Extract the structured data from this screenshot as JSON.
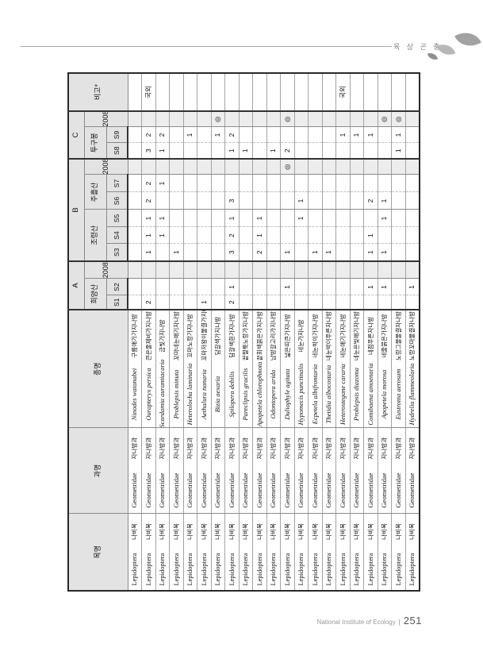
{
  "page": {
    "section_label": "육 상 곤 충",
    "footer_org": "National Institute of Ecology",
    "footer_sep": "|",
    "footer_page": "251"
  },
  "table": {
    "col_order": "목명",
    "col_family": "과명",
    "col_species": "종명",
    "col_remark": "비고*",
    "year_label": "2008",
    "groups": [
      {
        "label": "A",
        "sites": [
          {
            "name": "희양산",
            "cols": [
              "S1",
              "S2"
            ]
          }
        ]
      },
      {
        "label": "B",
        "sites": [
          {
            "name": "조령산",
            "cols": [
              "S3",
              "S4",
              "S5"
            ]
          },
          {
            "name": "주흘산",
            "cols": [
              "S6",
              "S7"
            ]
          }
        ]
      },
      {
        "label": "C",
        "sites": [
          {
            "name": "투구봉",
            "cols": [
              "S8",
              "S9"
            ]
          }
        ]
      }
    ],
    "mark_literature": "◎",
    "remark_foreign": "국외"
  },
  "rows": [
    {
      "order_la": "Lepidoptera",
      "order_ko": "나비목",
      "family_la": "Geometridae",
      "family_ko": "자나방과",
      "species_la": "Ninodes watanabei",
      "species_ko": "구름애기가지나방",
      "v": [
        "",
        "",
        "",
        "",
        "",
        "",
        "",
        "",
        "",
        "",
        "",
        ""
      ],
      "remark": ""
    },
    {
      "order_la": "Lepidoptera",
      "order_ko": "나비목",
      "family_la": "Geometridae",
      "family_ko": "자나방과",
      "species_la": "Ourapteryx persica",
      "species_ko": "큰은줄제비가지나방",
      "v": [
        "2",
        "",
        "",
        "1",
        "1",
        "1",
        "2",
        "2",
        "",
        "3",
        "2",
        ""
      ],
      "remark": "국외"
    },
    {
      "order_la": "Lepidoptera",
      "order_ko": "나비목",
      "family_la": "Geometridae",
      "family_ko": "자나방과",
      "species_la": "Scardamia aurantiacaria",
      "species_ko": "금빛가지나방",
      "v": [
        "",
        "",
        "",
        "",
        "1",
        "1",
        "",
        "1",
        "",
        "1",
        "2",
        ""
      ],
      "remark": ""
    },
    {
      "order_la": "Lepidoptera",
      "order_ko": "나비목",
      "family_la": "Geometridae",
      "family_ko": "자나방과",
      "species_la": "Problepsis minuta",
      "species_ko": "꼬마네눈애기자나방",
      "v": [
        "",
        "",
        "",
        "1",
        "",
        "",
        "",
        "",
        "",
        "",
        "",
        ""
      ],
      "remark": ""
    },
    {
      "order_la": "Lepidoptera",
      "order_ko": "나비목",
      "family_la": "Geometridae",
      "family_ko": "자나방과",
      "species_la": "Heterolocha laminaria",
      "species_ko": "꼬마노랑가지나방",
      "v": [
        "",
        "",
        "",
        "",
        "",
        "",
        "",
        "",
        "",
        "",
        "1",
        ""
      ],
      "remark": ""
    },
    {
      "order_la": "Lepidoptera",
      "order_ko": "나비목",
      "family_la": "Geometridae",
      "family_ko": "자나방과",
      "species_la": "Aethalura nanaria",
      "species_ko": "꼬마저왕이물결가지나방",
      "v": [
        "1",
        "",
        "",
        "",
        "",
        "",
        "",
        "",
        "",
        "",
        "",
        ""
      ],
      "remark": ""
    },
    {
      "order_la": "Lepidoptera",
      "order_ko": "나비목",
      "family_la": "Geometridae",
      "family_ko": "자나방과",
      "species_la": "Bizia aexaria",
      "species_ko": "담갈색가지나방",
      "v": [
        "",
        "",
        "",
        "",
        "",
        "",
        "",
        "",
        "",
        "",
        "1",
        "◎"
      ],
      "remark": ""
    },
    {
      "order_la": "Lepidoptera",
      "order_ko": "나비목",
      "family_la": "Geometridae",
      "family_ko": "자나방과",
      "species_la": "Spilopera debilis",
      "species_ko": "담갈색흰가지나방",
      "v": [
        "2",
        "1",
        "",
        "3",
        "2",
        "1",
        "3",
        "",
        "",
        "1",
        "2",
        ""
      ],
      "remark": ""
    },
    {
      "order_la": "Lepidoptera",
      "order_ko": "나비목",
      "family_la": "Geometridae",
      "family_ko": "자나방과",
      "species_la": "Pareclipsis gracilis",
      "species_ko": "끝짤룩노랑가지나방",
      "v": [
        "",
        "",
        "",
        "",
        "",
        "",
        "",
        "",
        "",
        "1",
        "",
        ""
      ],
      "remark": ""
    },
    {
      "order_la": "Lepidoptera",
      "order_ko": "나비목",
      "family_la": "Geometridae",
      "family_ko": "자나방과",
      "species_la": "Apopetela chlorophnota",
      "species_ko": "끝회색붉은가지나방",
      "v": [
        "",
        "",
        "",
        "2",
        "1",
        "1",
        "",
        "",
        "",
        "",
        "",
        ""
      ],
      "remark": ""
    },
    {
      "order_la": "Lepidoptera",
      "order_ko": "나비목",
      "family_la": "Geometridae",
      "family_ko": "자나방과",
      "species_la": "Odontopera arida",
      "species_ko": "남방갈고리가지나방",
      "v": [
        "",
        "",
        "",
        "",
        "",
        "",
        "",
        "",
        "",
        "1",
        "",
        ""
      ],
      "remark": ""
    },
    {
      "order_la": "Lepidoptera",
      "order_ko": "나비목",
      "family_la": "Geometridae",
      "family_ko": "자나방과",
      "species_la": "Duliophyle agitata",
      "species_ko": "넓은띠큰가지나방",
      "v": [
        "",
        "1",
        "",
        "1",
        "",
        "",
        "",
        "",
        "◎",
        "2",
        "",
        "◎"
      ],
      "remark": ""
    },
    {
      "order_la": "Lepidoptera",
      "order_ko": "나비목",
      "family_la": "Geometridae",
      "family_ko": "자나방과",
      "species_la": "Hypomecis punctinalis",
      "species_ko": "네눈가지나방",
      "v": [
        "",
        "",
        "",
        "",
        "",
        "1",
        "1",
        "",
        "",
        "",
        "",
        ""
      ],
      "remark": ""
    },
    {
      "order_la": "Lepidoptera",
      "order_ko": "나비목",
      "family_la": "Geometridae",
      "family_ko": "자나방과",
      "species_la": "Ecpetela albifrontaria",
      "species_ko": "네눈박이가지나방",
      "v": [
        "",
        "",
        "",
        "1",
        "",
        "",
        "",
        "",
        "",
        "",
        "",
        ""
      ],
      "remark": ""
    },
    {
      "order_la": "Lepidoptera",
      "order_ko": "나비목",
      "family_la": "Geometridae",
      "family_ko": "자나방과",
      "species_la": "Thetidia albocostaria",
      "species_ko": "네눈박이푸른자나방",
      "v": [
        "",
        "",
        "",
        "1",
        "",
        "",
        "",
        "",
        "",
        "",
        "",
        ""
      ],
      "remark": ""
    },
    {
      "order_la": "Lepidoptera",
      "order_ko": "나비목",
      "family_la": "Geometridae",
      "family_ko": "자나방과",
      "species_la": "Heterostegane cararia",
      "species_ko": "네눈애기가지나방",
      "v": [
        "",
        "",
        "",
        "",
        "",
        "",
        "",
        "",
        "",
        "",
        "1",
        ""
      ],
      "remark": "국외"
    },
    {
      "order_la": "Lepidoptera",
      "order_ko": "나비목",
      "family_la": "Geometridae",
      "family_ko": "자나방과",
      "species_la": "Problepsis diazoma",
      "species_ko": "네눈은빛애기자나방",
      "v": [
        "",
        "",
        "",
        "",
        "",
        "",
        "",
        "",
        "",
        "",
        "1",
        ""
      ],
      "remark": ""
    },
    {
      "order_la": "Lepidoptera",
      "order_ko": "나비목",
      "family_la": "Geometridae",
      "family_ko": "자나방과",
      "species_la": "Comibaena amoenaria",
      "species_ko": "네점푸른자나방",
      "v": [
        "",
        "1",
        "",
        "1",
        "1",
        "",
        "2",
        "",
        "",
        "",
        "1",
        ""
      ],
      "remark": ""
    },
    {
      "order_la": "Lepidoptera",
      "order_ko": "나비목",
      "family_la": "Geometridae",
      "family_ko": "자나방과",
      "species_la": "Apopetela morosa",
      "species_ko": "네줄붉은가지나방",
      "v": [
        "",
        "1",
        "",
        "1",
        "",
        "1",
        "1",
        "",
        "",
        "",
        "",
        "◎"
      ],
      "remark": ""
    },
    {
      "order_la": "Lepidoptera",
      "order_ko": "나비목",
      "family_la": "Geometridae",
      "family_ko": "자나방과",
      "species_la": "Eustroma aerosum",
      "species_ko": "노랑그물물결자나방",
      "v": [
        "",
        "",
        "",
        "",
        "",
        "",
        "",
        "",
        "",
        "1",
        "1",
        "◎"
      ],
      "remark": ""
    },
    {
      "order_la": "Lepidoptera",
      "order_ko": "나비목",
      "family_la": "Geometridae",
      "family_ko": "자나방과",
      "species_la": "Hydrelia flammeolaria",
      "species_ko": "노랑꼬마물결자나방",
      "v": [
        "",
        "1",
        "",
        "",
        "",
        "",
        "",
        "",
        "",
        "",
        "",
        ""
      ],
      "remark": ""
    }
  ]
}
